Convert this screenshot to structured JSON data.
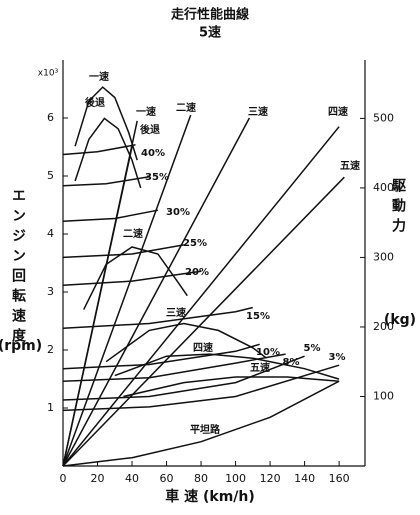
{
  "chart_data": {
    "type": "line",
    "title": "走行性能曲線",
    "subtitle": "5速",
    "xlabel": "車 速 (km/h)",
    "ylabel": "エンジン回転速度",
    "yunit": "(rpm)",
    "yscale_label": "x10³",
    "y2label": "駆動力",
    "y2unit": "(kg)",
    "xlim": [
      0,
      175
    ],
    "xticks": [
      0,
      20,
      40,
      60,
      80,
      100,
      120,
      140,
      160
    ],
    "ylim": [
      0,
      7
    ],
    "yticks": [
      1,
      2,
      3,
      4,
      5,
      6
    ],
    "y2lim": [
      0,
      584
    ],
    "y2ticks": [
      100,
      200,
      300,
      400,
      500
    ],
    "color": "#111111",
    "series": [
      {
        "name": "一速",
        "axis": "y",
        "x": [
          0,
          43
        ],
        "values": [
          0,
          5.95
        ]
      },
      {
        "name": "後退",
        "axis": "y",
        "x": [
          0,
          40
        ],
        "values": [
          0,
          5.5
        ]
      },
      {
        "name": "二速",
        "axis": "y",
        "x": [
          0,
          74
        ],
        "values": [
          0,
          6.05
        ]
      },
      {
        "name": "三速",
        "axis": "y",
        "x": [
          0,
          108
        ],
        "values": [
          0,
          6.0
        ]
      },
      {
        "name": "四速",
        "axis": "y",
        "x": [
          0,
          160
        ],
        "values": [
          0,
          5.85
        ]
      },
      {
        "name": "五速",
        "axis": "y",
        "x": [
          0,
          163
        ],
        "values": [
          0,
          4.98
        ]
      },
      {
        "name": "一速",
        "axis": "y2",
        "x": [
          7,
          15,
          23,
          30,
          38,
          43
        ],
        "values": [
          460,
          525,
          545,
          530,
          480,
          440
        ]
      },
      {
        "name": "後退",
        "axis": "y2",
        "x": [
          7,
          15,
          24,
          32,
          40,
          45
        ],
        "values": [
          410,
          470,
          500,
          485,
          440,
          400
        ]
      },
      {
        "name": "二速",
        "axis": "y2",
        "x": [
          12,
          25,
          40,
          55,
          65,
          72
        ],
        "values": [
          225,
          290,
          315,
          305,
          270,
          245
        ]
      },
      {
        "name": "三速",
        "axis": "y2",
        "x": [
          25,
          50,
          70,
          90,
          110,
          118
        ],
        "values": [
          150,
          195,
          205,
          195,
          170,
          155
        ]
      },
      {
        "name": "四速",
        "axis": "y2",
        "x": [
          30,
          60,
          85,
          110,
          140,
          160
        ],
        "values": [
          130,
          158,
          161,
          155,
          140,
          125
        ]
      },
      {
        "name": "五速",
        "axis": "y2",
        "x": [
          35,
          70,
          100,
          130,
          160
        ],
        "values": [
          100,
          120,
          128,
          128,
          122
        ]
      },
      {
        "name": "40%",
        "axis": "y2",
        "x": [
          0,
          20,
          42
        ],
        "values": [
          448,
          452,
          462
        ]
      },
      {
        "name": "35%",
        "axis": "y2",
        "x": [
          0,
          25,
          50
        ],
        "values": [
          403,
          406,
          416
        ]
      },
      {
        "name": "30%",
        "axis": "y2",
        "x": [
          0,
          30,
          55
        ],
        "values": [
          352,
          356,
          368
        ]
      },
      {
        "name": "25%",
        "axis": "y2",
        "x": [
          0,
          40,
          70
        ],
        "values": [
          300,
          305,
          318
        ]
      },
      {
        "name": "20%",
        "axis": "y2",
        "x": [
          0,
          40,
          80
        ],
        "values": [
          260,
          266,
          280
        ]
      },
      {
        "name": "15%",
        "axis": "y2",
        "x": [
          0,
          50,
          100,
          110
        ],
        "values": [
          198,
          205,
          222,
          228
        ]
      },
      {
        "name": "10%",
        "axis": "y2",
        "x": [
          0,
          50,
          100,
          114
        ],
        "values": [
          140,
          146,
          165,
          175
        ]
      },
      {
        "name": "8%",
        "axis": "y2",
        "x": [
          0,
          50,
          100,
          129
        ],
        "values": [
          122,
          127,
          148,
          161
        ]
      },
      {
        "name": "5%",
        "axis": "y2",
        "x": [
          0,
          50,
          100,
          140
        ],
        "values": [
          95,
          100,
          120,
          158
        ]
      },
      {
        "name": "3%",
        "axis": "y2",
        "x": [
          0,
          50,
          100,
          160
        ],
        "values": [
          80,
          85,
          100,
          145
        ]
      },
      {
        "name": "平坦路",
        "axis": "y2",
        "x": [
          0,
          40,
          80,
          120,
          160
        ],
        "values": [
          0,
          12,
          35,
          70,
          122
        ]
      }
    ]
  }
}
